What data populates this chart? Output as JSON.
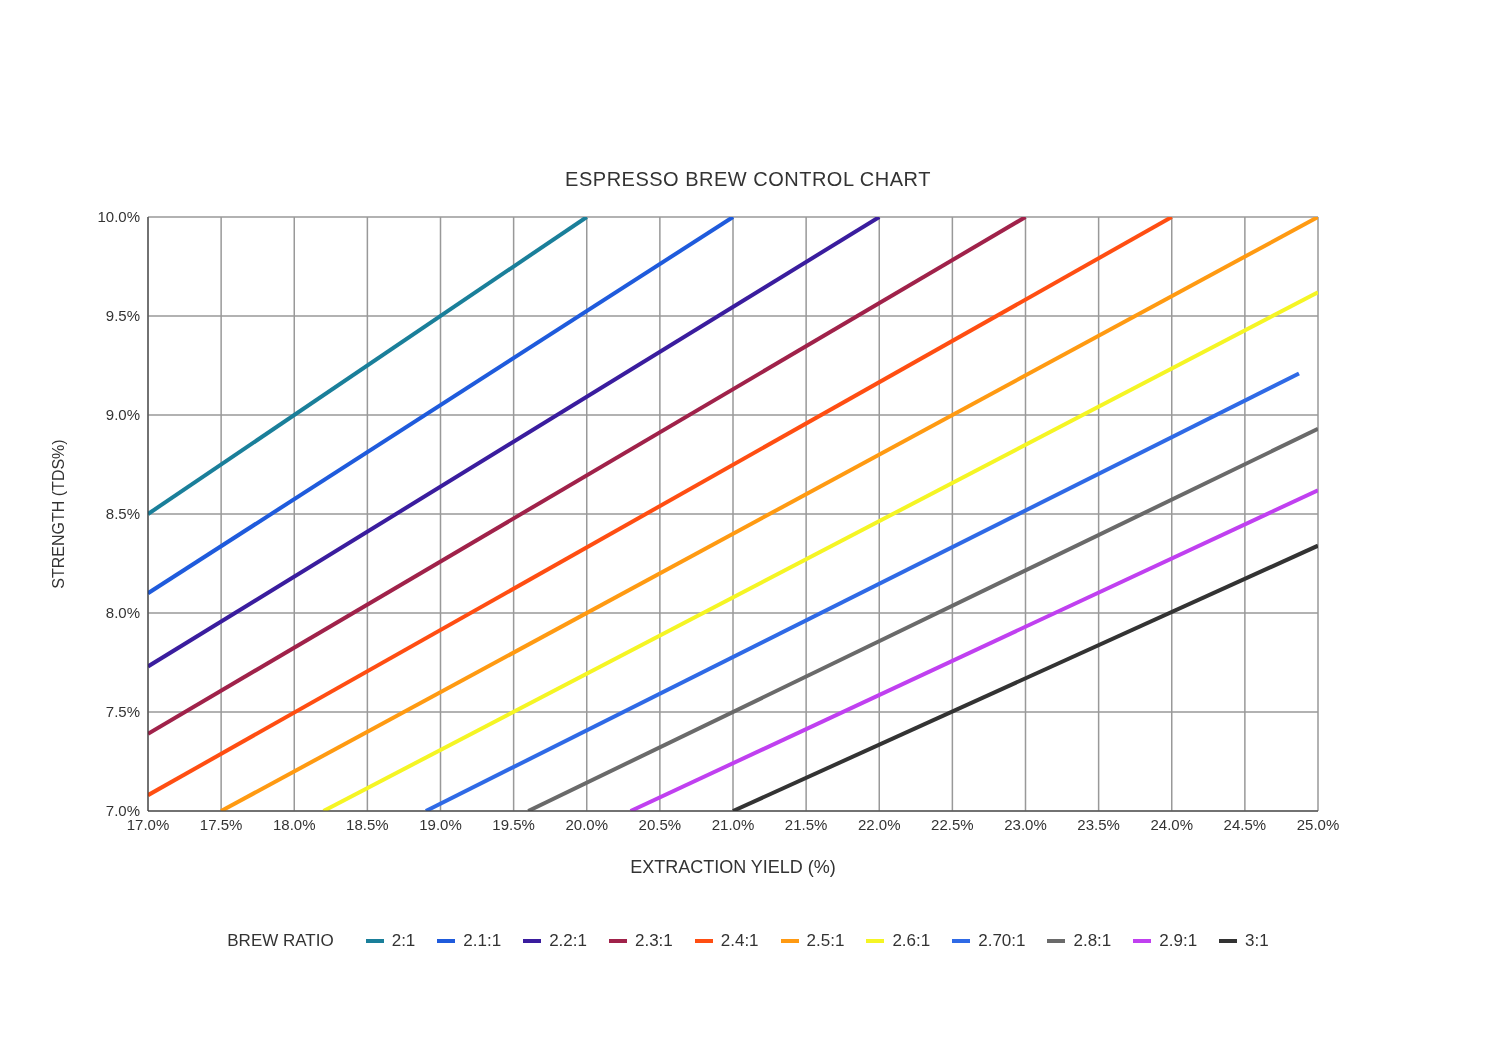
{
  "chart_data": {
    "type": "line",
    "title": "ESPRESSO BREW CONTROL CHART",
    "xlabel": "EXTRACTION YIELD (%)",
    "ylabel": "STRENGTH (TDS%)",
    "legend_title": "BREW RATIO",
    "legend": "bottom",
    "grid": true,
    "marker": "none",
    "line_style": "solid",
    "xlim": [
      17,
      25
    ],
    "ylim": [
      7,
      10
    ],
    "xticks": [
      {
        "value": 17,
        "label": "17.0%"
      },
      {
        "value": 17.5,
        "label": "17.5%"
      },
      {
        "value": 18,
        "label": "18.0%"
      },
      {
        "value": 18.5,
        "label": "18.5%"
      },
      {
        "value": 19,
        "label": "19.0%"
      },
      {
        "value": 19.5,
        "label": "19.5%"
      },
      {
        "value": 20,
        "label": "20.0%"
      },
      {
        "value": 20.5,
        "label": "20.5%"
      },
      {
        "value": 21,
        "label": "21.0%"
      },
      {
        "value": 21.5,
        "label": "21.5%"
      },
      {
        "value": 22,
        "label": "22.0%"
      },
      {
        "value": 22.5,
        "label": "22.5%"
      },
      {
        "value": 23,
        "label": "23.0%"
      },
      {
        "value": 23.5,
        "label": "23.5%"
      },
      {
        "value": 24,
        "label": "24.0%"
      },
      {
        "value": 24.5,
        "label": "24.5%"
      },
      {
        "value": 25,
        "label": "25.0%"
      }
    ],
    "yticks": [
      {
        "value": 7,
        "label": "7.0%"
      },
      {
        "value": 7.5,
        "label": "7.5%"
      },
      {
        "value": 8,
        "label": "8.0%"
      },
      {
        "value": 8.5,
        "label": "8.5%"
      },
      {
        "value": 9,
        "label": "9.0%"
      },
      {
        "value": 9.5,
        "label": "9.5%"
      },
      {
        "value": 10,
        "label": "10.0%"
      }
    ],
    "series": [
      {
        "name": "2:1",
        "color": "#1a7f9a",
        "x": [
          17,
          20
        ],
        "values": [
          8.5,
          10
        ]
      },
      {
        "name": "2.1:1",
        "color": "#1f5bdc",
        "x": [
          17,
          21
        ],
        "values": [
          8.1,
          10
        ]
      },
      {
        "name": "2.2:1",
        "color": "#3a1d9e",
        "x": [
          17,
          22
        ],
        "values": [
          7.73,
          10
        ]
      },
      {
        "name": "2.3:1",
        "color": "#a0224a",
        "x": [
          17,
          23
        ],
        "values": [
          7.39,
          10
        ]
      },
      {
        "name": "2.4:1",
        "color": "#ff4e12",
        "x": [
          17,
          24
        ],
        "values": [
          7.08,
          10
        ]
      },
      {
        "name": "2.5:1",
        "color": "#ff9a12",
        "x": [
          17.5,
          25
        ],
        "values": [
          7,
          10
        ]
      },
      {
        "name": "2.6:1",
        "color": "#f5f524",
        "x": [
          18.2,
          25
        ],
        "values": [
          7,
          9.62
        ]
      },
      {
        "name": "2.70:1",
        "color": "#2f6ae6",
        "x": [
          18.9,
          24.87
        ],
        "values": [
          7,
          9.21
        ]
      },
      {
        "name": "2.8:1",
        "color": "#6a6a6a",
        "x": [
          19.6,
          25
        ],
        "values": [
          7,
          8.93
        ]
      },
      {
        "name": "2.9:1",
        "color": "#c040f0",
        "x": [
          20.3,
          25
        ],
        "values": [
          7,
          8.62
        ]
      },
      {
        "name": "3:1",
        "color": "#333333",
        "x": [
          21,
          25
        ],
        "values": [
          7,
          8.34
        ]
      }
    ]
  }
}
